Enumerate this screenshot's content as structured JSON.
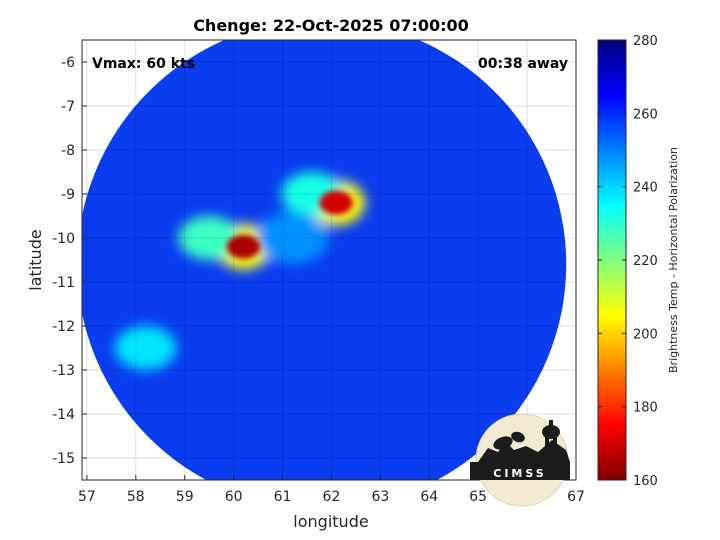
{
  "chart_data": {
    "type": "heatmap",
    "title": "Chenge: 22-Oct-2025 07:00:00",
    "xlabel": "longitude",
    "ylabel": "latitude",
    "xlim": [
      56.9,
      67.0
    ],
    "ylim": [
      -15.5,
      -5.5
    ],
    "xticks": [
      57,
      58,
      59,
      60,
      61,
      62,
      63,
      64,
      65,
      66,
      67
    ],
    "yticks": [
      -6,
      -7,
      -8,
      -9,
      -10,
      -11,
      -12,
      -13,
      -14,
      -15
    ],
    "grid": true,
    "swath": {
      "center": [
        61.8,
        -10.6
      ],
      "radius_deg": 5.0
    },
    "colorbar": {
      "label": "Brightness Temp - Horizontal Polarization",
      "range": [
        160,
        280
      ],
      "ticks": [
        160,
        180,
        200,
        220,
        240,
        260,
        280
      ]
    },
    "features": [
      {
        "name": "core-cluster-west",
        "lon": 60.2,
        "lat": -10.2,
        "tb": 165
      },
      {
        "name": "core-cluster-north",
        "lon": 62.1,
        "lat": -9.2,
        "tb": 170
      },
      {
        "name": "rain-band-west",
        "lon": 59.5,
        "lat": -10.0,
        "tb": 228
      },
      {
        "name": "rain-band-north",
        "lon": 61.6,
        "lat": -9.0,
        "tb": 232
      },
      {
        "name": "outer-band-sw",
        "lon": 58.2,
        "lat": -12.5,
        "tb": 238
      },
      {
        "name": "eye-region",
        "lon": 61.2,
        "lat": -10.0,
        "tb": 248
      }
    ]
  },
  "annotations": {
    "vmax": "Vmax: 60 kts",
    "time_away": "00:38 away"
  },
  "logo": {
    "text": "CIMSS"
  }
}
